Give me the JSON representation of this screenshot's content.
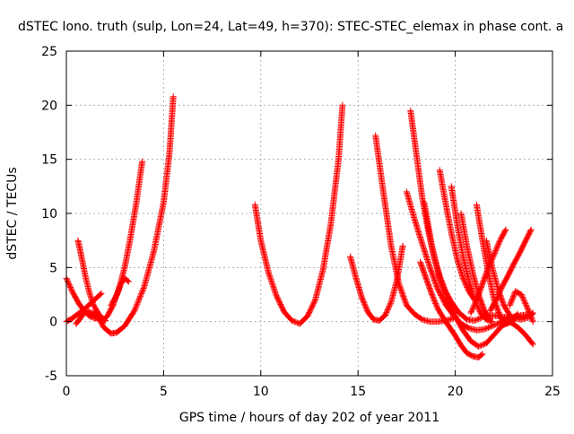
{
  "chart_data": {
    "type": "scatter",
    "title": "dSTEC Iono. truth (sulp, Lon=24, Lat=49, h=370): STEC-STEC_elemax in phase cont. a",
    "xlabel": "GPS time / hours of day 202 of year 2011",
    "ylabel": "dSTEC  / TECUs",
    "xlim": [
      0,
      25
    ],
    "ylim": [
      -5,
      25
    ],
    "xticks": [
      "0",
      "5",
      "10",
      "15",
      "20",
      "25"
    ],
    "yticks": [
      "-5",
      "0",
      "5",
      "10",
      "15",
      "20",
      "25"
    ],
    "grid": true,
    "marker": "+",
    "colors": {
      "series": "#ff0000",
      "grid": "#b0b0b0",
      "axis": "#000000"
    },
    "series": [
      {
        "x": [
          0.0,
          0.3,
          0.6,
          0.9,
          1.2,
          1.5,
          1.8
        ],
        "y": [
          4.0,
          2.8,
          1.8,
          1.0,
          0.5,
          0.3,
          0.3
        ]
      },
      {
        "x": [
          0.0,
          0.3,
          0.6,
          0.9,
          1.2,
          1.5,
          1.8
        ],
        "y": [
          0.0,
          0.3,
          0.7,
          1.1,
          1.6,
          2.1,
          2.6
        ]
      },
      {
        "x": [
          0.5,
          0.8,
          1.0,
          1.3,
          1.6,
          1.9
        ],
        "y": [
          -0.2,
          0.5,
          1.0,
          0.8,
          0.3,
          0.0
        ]
      },
      {
        "x": [
          0.6,
          0.8,
          1.0,
          1.2,
          1.4,
          1.7,
          2.0
        ],
        "y": [
          7.5,
          5.8,
          4.0,
          2.6,
          1.5,
          0.6,
          0.1
        ]
      },
      {
        "x": [
          1.8,
          2.1,
          2.4,
          2.7,
          3.0,
          3.3,
          3.6,
          3.9
        ],
        "y": [
          0.0,
          0.5,
          1.5,
          3.0,
          5.0,
          7.8,
          11.0,
          14.8
        ]
      },
      {
        "x": [
          1.5,
          1.9,
          2.3,
          2.6,
          3.0,
          3.5,
          4.0,
          4.5,
          5.0,
          5.3,
          5.5
        ],
        "y": [
          1.0,
          -0.5,
          -1.1,
          -1.0,
          -0.4,
          1.0,
          3.2,
          6.5,
          11.0,
          15.5,
          20.8
        ]
      },
      {
        "x": [
          2.3,
          2.6,
          2.8,
          3.0,
          3.2
        ],
        "y": [
          1.5,
          2.5,
          3.5,
          4.0,
          3.7
        ]
      },
      {
        "x": [
          9.7,
          10.0,
          10.4,
          10.8,
          11.2,
          11.6,
          12.0,
          12.4,
          12.8,
          13.2,
          13.6,
          14.0,
          14.2
        ],
        "y": [
          10.8,
          7.5,
          4.5,
          2.4,
          0.9,
          0.1,
          -0.2,
          0.5,
          2.0,
          4.8,
          9.0,
          15.0,
          20.0
        ]
      },
      {
        "x": [
          14.6,
          14.9,
          15.2,
          15.5,
          15.8,
          16.1,
          16.4,
          16.7,
          17.0,
          17.3
        ],
        "y": [
          6.0,
          4.0,
          2.2,
          0.9,
          0.2,
          0.1,
          0.6,
          1.8,
          3.8,
          7.0
        ]
      },
      {
        "x": [
          15.9,
          16.3,
          16.7,
          17.1,
          17.5,
          17.9,
          18.3,
          18.7,
          19.1,
          19.5,
          19.9
        ],
        "y": [
          17.2,
          12.0,
          7.0,
          3.5,
          1.5,
          0.7,
          0.2,
          0.0,
          0.0,
          0.1,
          0.3
        ]
      },
      {
        "x": [
          17.7,
          18.0,
          18.3,
          18.6,
          18.9,
          19.2,
          19.5,
          19.8,
          20.2,
          20.6,
          21.0,
          21.4,
          21.8,
          22.2,
          22.6,
          23.0,
          23.4,
          23.8,
          24.0
        ],
        "y": [
          19.5,
          15.5,
          11.5,
          8.5,
          6.0,
          4.2,
          2.8,
          1.8,
          0.8,
          0.2,
          0.1,
          0.4,
          0.6,
          0.5,
          0.4,
          0.3,
          0.2,
          0.4,
          0.8
        ]
      },
      {
        "x": [
          17.5,
          17.9,
          18.3,
          18.7,
          19.1,
          19.5,
          19.9,
          20.3,
          20.7,
          21.1,
          21.5,
          21.9,
          22.3,
          22.7,
          23.1,
          23.5,
          23.9
        ],
        "y": [
          12.0,
          9.5,
          7.2,
          5.0,
          3.0,
          1.6,
          0.6,
          -0.2,
          -0.6,
          -0.8,
          -0.7,
          -0.4,
          -0.1,
          0.3,
          0.5,
          0.6,
          0.7
        ]
      },
      {
        "x": [
          18.4,
          18.8,
          19.2,
          19.6,
          20.0,
          20.4,
          20.8,
          21.2,
          21.6,
          22.0,
          22.4,
          22.8,
          23.2,
          23.6,
          24.0
        ],
        "y": [
          11.0,
          7.0,
          4.0,
          2.0,
          0.5,
          -0.8,
          -1.8,
          -2.3,
          -2.0,
          -1.2,
          -0.4,
          0.0,
          -0.5,
          -1.2,
          -2.1
        ]
      },
      {
        "x": [
          18.2,
          18.5,
          18.8,
          19.1,
          19.4,
          19.7,
          20.0,
          20.3,
          20.6,
          20.9,
          21.2,
          21.4
        ],
        "y": [
          5.5,
          4.0,
          2.5,
          1.2,
          0.3,
          -0.5,
          -1.3,
          -2.2,
          -2.9,
          -3.2,
          -3.3,
          -3.0
        ]
      },
      {
        "x": [
          19.2,
          19.5,
          19.8,
          20.1,
          20.4,
          20.7,
          21.0
        ],
        "y": [
          14.0,
          11.0,
          8.2,
          5.8,
          4.0,
          2.8,
          2.0
        ]
      },
      {
        "x": [
          19.8,
          20.1,
          20.4,
          20.7,
          21.0,
          21.3,
          21.6,
          21.9
        ],
        "y": [
          12.5,
          9.0,
          6.0,
          3.8,
          2.0,
          0.8,
          0.2,
          0.0
        ]
      },
      {
        "x": [
          20.3,
          20.6,
          20.9,
          21.2,
          21.5,
          21.8
        ],
        "y": [
          10.0,
          7.0,
          4.5,
          2.5,
          1.0,
          0.2
        ]
      },
      {
        "x": [
          21.1,
          21.4,
          21.7,
          22.0,
          22.3,
          22.6,
          22.9,
          23.2
        ],
        "y": [
          10.8,
          7.5,
          4.5,
          2.0,
          0.5,
          -0.2,
          0.0,
          0.7
        ]
      },
      {
        "x": [
          21.6,
          21.9,
          22.2,
          22.5,
          22.8,
          23.0
        ],
        "y": [
          7.5,
          5.0,
          3.0,
          1.5,
          0.6,
          0.2
        ]
      },
      {
        "x": [
          20.8,
          21.1,
          21.4,
          21.7,
          22.0,
          22.3,
          22.6
        ],
        "y": [
          0.8,
          2.0,
          3.5,
          5.0,
          6.2,
          7.5,
          8.5
        ]
      },
      {
        "x": [
          21.8,
          22.1,
          22.4,
          22.7,
          23.0,
          23.3,
          23.6,
          23.9
        ],
        "y": [
          1.0,
          2.0,
          3.2,
          4.2,
          5.3,
          6.3,
          7.4,
          8.5
        ]
      },
      {
        "x": [
          22.8,
          23.1,
          23.4,
          23.7,
          24.0
        ],
        "y": [
          1.5,
          2.8,
          2.5,
          1.3,
          0.0
        ]
      }
    ]
  }
}
